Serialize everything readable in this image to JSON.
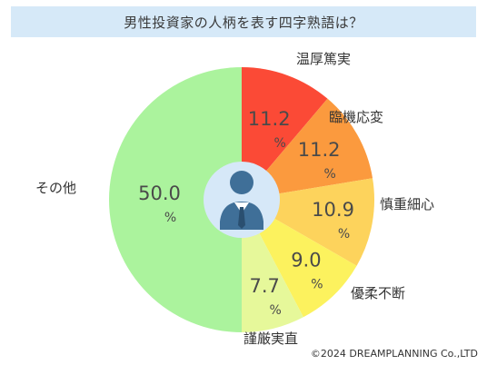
{
  "title": "男性投資家の人柄を表す四字熟語は？",
  "copyright": "©2024 DREAMPLANNING Co.,LTD",
  "chart_data": {
    "type": "pie",
    "title": "男性投資家の人柄を表す四字熟語は？",
    "unit": "%",
    "categories": [
      "温厚篤実",
      "臨機応変",
      "慎重細心",
      "優柔不断",
      "謹厳実直",
      "その他"
    ],
    "values": [
      11.2,
      11.2,
      10.9,
      9.0,
      7.7,
      50.0
    ],
    "value_labels": [
      "11.2",
      "11.2",
      "10.9",
      "9.0",
      "7.7",
      "50.0"
    ],
    "colors": [
      "#fb4a36",
      "#fb9a3e",
      "#fdd35c",
      "#fcf25e",
      "#e6f89a",
      "#abf39d"
    ],
    "start": "12 o'clock, clockwise",
    "center_icon": "businessman-icon",
    "legend": "none"
  }
}
